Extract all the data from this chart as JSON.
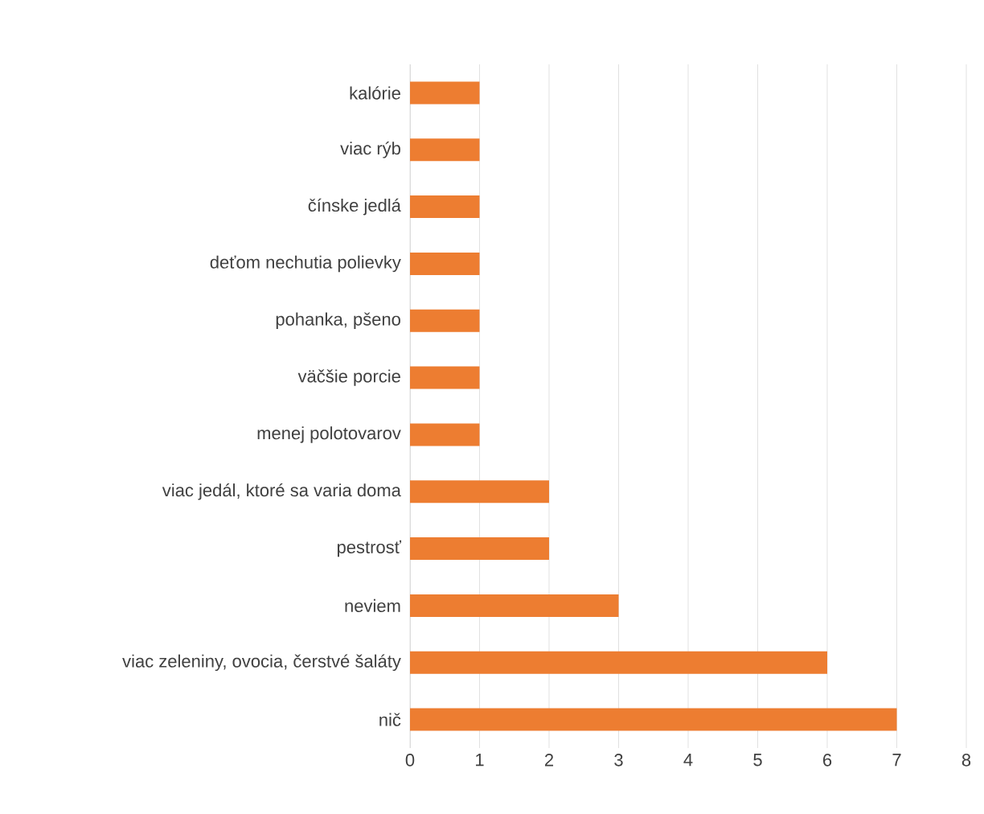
{
  "chart_data": {
    "type": "bar",
    "orientation": "horizontal",
    "categories": [
      "kalórie",
      "viac rýb",
      "čínske jedlá",
      "deťom nechutia polievky",
      "pohanka, pšeno",
      "väčšie porcie",
      "menej polotovarov",
      "viac jedál, ktoré sa varia doma",
      "pestrosť",
      "neviem",
      "viac zeleniny, ovocia, čerstvé šaláty",
      "nič"
    ],
    "values": [
      1,
      1,
      1,
      1,
      1,
      1,
      1,
      2,
      2,
      3,
      6,
      7
    ],
    "color": "#ed7d31",
    "xlim": [
      0,
      8
    ],
    "xticks": [
      0,
      1,
      2,
      3,
      4,
      5,
      6,
      7,
      8
    ],
    "grid": "x"
  }
}
